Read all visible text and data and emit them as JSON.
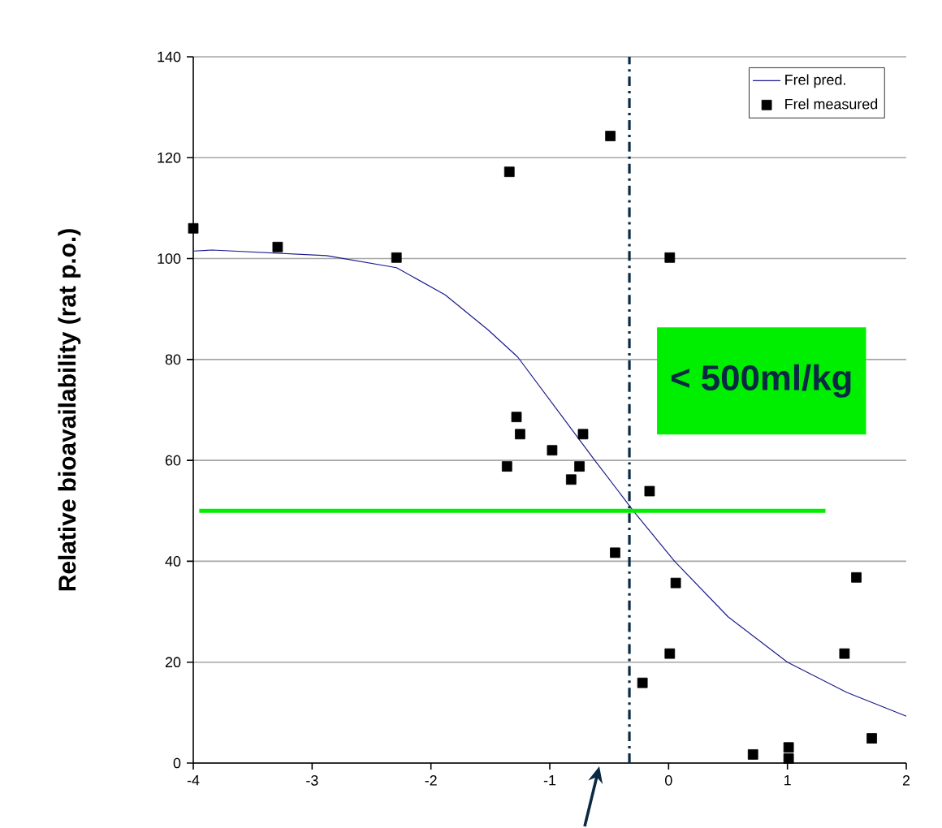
{
  "chart_data": {
    "type": "scatter",
    "ylabel": "Relative bioavailability (rat p.o.)",
    "annotations": [
      "< 500ml/kg"
    ],
    "xlim": [
      -4,
      2
    ],
    "ylim": [
      0,
      140
    ],
    "xticks": [
      -4,
      -3,
      -2,
      -1,
      0,
      1,
      2
    ],
    "yticks": [
      0,
      20,
      40,
      60,
      80,
      100,
      120,
      140
    ],
    "grid": "y",
    "legend": "top right",
    "marker": "square",
    "series": [
      {
        "name": "Frel pred.",
        "type": "line",
        "color": "#1a1a8c",
        "marker": "none",
        "x": [
          -4,
          -3.84,
          -2.88,
          -2.29,
          -1.88,
          -1.52,
          -1.27,
          -0.63,
          -0.29,
          0.05,
          0.5,
          1.0,
          1.5,
          2
        ],
        "values": [
          101.5,
          101.7,
          100.6,
          98.2,
          92.8,
          85.9,
          80.5,
          60.3,
          49.8,
          40,
          29,
          20,
          14,
          9.3
        ]
      },
      {
        "name": "Frel measured",
        "color": "#000000",
        "x": [
          -4.0,
          -3.29,
          -2.29,
          -1.34,
          -0.49,
          0.01,
          -1.28,
          -1.25,
          -1.36,
          -0.98,
          -0.72,
          -0.75,
          -0.82,
          -0.16,
          -0.45,
          0.06,
          0.01,
          -0.22,
          1.58,
          1.48,
          1.71,
          0.71,
          1.01,
          1.01
        ],
        "values": [
          106,
          102.3,
          100.2,
          117.2,
          124.3,
          100.2,
          68.6,
          65.2,
          58.8,
          62.0,
          65.2,
          58.8,
          56.2,
          53.9,
          41.7,
          35.7,
          21.7,
          15.9,
          36.8,
          21.7,
          4.9,
          1.7,
          3.1,
          0.9
        ]
      },
      {
        "type": "line",
        "color": "#00ee00",
        "marker": "none",
        "x": [
          -3.95,
          1.32
        ],
        "values": [
          50,
          50
        ]
      }
    ],
    "ref_lines": [
      {
        "axis": "x",
        "value": -0.33,
        "color": "#0a2a44",
        "line_style": "dashdot"
      }
    ]
  }
}
